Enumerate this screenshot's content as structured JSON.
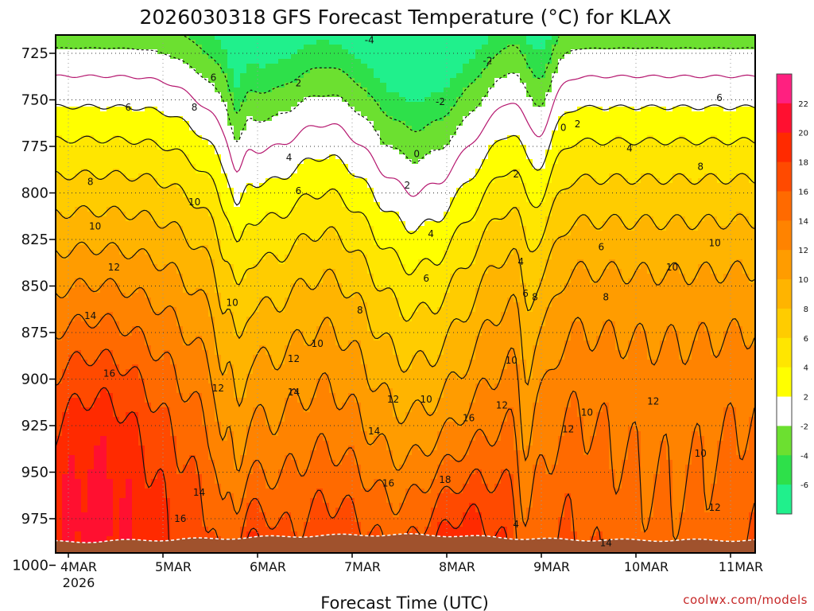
{
  "chart_data": {
    "type": "heatmap",
    "title": "2026030318 GFS Forecast Temperature (°C) for KLAX",
    "xlabel": "Forecast Time (UTC)",
    "ylabel": "",
    "credit": "coolwx.com/models",
    "x_tick_labels": [
      "4MAR",
      "5MAR",
      "6MAR",
      "7MAR",
      "8MAR",
      "9MAR",
      "10MAR",
      "11MAR"
    ],
    "x_tick_sublabel": "2026",
    "x_range_days": [
      0,
      7.2
    ],
    "y_tick_labels": [
      "725",
      "750",
      "775",
      "800",
      "825",
      "850",
      "875",
      "900",
      "925",
      "950",
      "975",
      "1000"
    ],
    "y_range_hpa": [
      713,
      1015
    ],
    "colorbar": {
      "labels": [
        "22",
        "20",
        "18",
        "16",
        "14",
        "12",
        "10",
        "8",
        "6",
        "4",
        "2",
        "-2",
        "-4",
        "-6"
      ],
      "bins": [
        {
          "lo": -8,
          "hi": -6,
          "color": "#20f08c"
        },
        {
          "lo": -6,
          "hi": -4,
          "color": "#2ee04a"
        },
        {
          "lo": -4,
          "hi": -2,
          "color": "#6ce030"
        },
        {
          "lo": -2,
          "hi": 2,
          "color": "#ffffff"
        },
        {
          "lo": 2,
          "hi": 4,
          "color": "#ffff00"
        },
        {
          "lo": 4,
          "hi": 6,
          "color": "#ffe600"
        },
        {
          "lo": 6,
          "hi": 8,
          "color": "#ffcc00"
        },
        {
          "lo": 8,
          "hi": 10,
          "color": "#ffb400"
        },
        {
          "lo": 10,
          "hi": 12,
          "color": "#ff9c00"
        },
        {
          "lo": 12,
          "hi": 14,
          "color": "#ff8300"
        },
        {
          "lo": 14,
          "hi": 16,
          "color": "#ff6a00"
        },
        {
          "lo": 16,
          "hi": 18,
          "color": "#ff4a00"
        },
        {
          "lo": 18,
          "hi": 20,
          "color": "#ff2a00"
        },
        {
          "lo": 20,
          "hi": 22,
          "color": "#ff1030"
        },
        {
          "lo": 22,
          "hi": 24,
          "color": "#ff2080"
        }
      ]
    },
    "contour_labels": [
      {
        "text": "-4",
        "day": 3.25,
        "p": 718
      },
      {
        "text": "-2",
        "day": 4.5,
        "p": 729
      },
      {
        "text": "-2",
        "day": 4.0,
        "p": 751
      },
      {
        "text": "2",
        "day": 2.5,
        "p": 741
      },
      {
        "text": "0",
        "day": 5.3,
        "p": 765
      },
      {
        "text": "2",
        "day": 5.45,
        "p": 763
      },
      {
        "text": "0",
        "day": 3.75,
        "p": 779
      },
      {
        "text": "2",
        "day": 3.65,
        "p": 796
      },
      {
        "text": "2",
        "day": 4.8,
        "p": 790
      },
      {
        "text": "4",
        "day": 6.0,
        "p": 776
      },
      {
        "text": "6",
        "day": 1.6,
        "p": 738
      },
      {
        "text": "6",
        "day": 0.7,
        "p": 754
      },
      {
        "text": "6",
        "day": 6.95,
        "p": 749
      },
      {
        "text": "8",
        "day": 1.4,
        "p": 754
      },
      {
        "text": "8",
        "day": 0.3,
        "p": 794
      },
      {
        "text": "8",
        "day": 6.75,
        "p": 786
      },
      {
        "text": "4",
        "day": 2.4,
        "p": 781
      },
      {
        "text": "6",
        "day": 2.5,
        "p": 799
      },
      {
        "text": "4",
        "day": 3.9,
        "p": 822
      },
      {
        "text": "4",
        "day": 4.85,
        "p": 837
      },
      {
        "text": "6",
        "day": 3.85,
        "p": 846
      },
      {
        "text": "6",
        "day": 5.7,
        "p": 829
      },
      {
        "text": "6",
        "day": 4.9,
        "p": 854
      },
      {
        "text": "8",
        "day": 5.0,
        "p": 856
      },
      {
        "text": "8",
        "day": 5.75,
        "p": 856
      },
      {
        "text": "8",
        "day": 3.15,
        "p": 863
      },
      {
        "text": "10",
        "day": 1.4,
        "p": 805
      },
      {
        "text": "10",
        "day": 0.35,
        "p": 818
      },
      {
        "text": "10",
        "day": 1.8,
        "p": 859
      },
      {
        "text": "10",
        "day": 2.7,
        "p": 881
      },
      {
        "text": "10",
        "day": 6.45,
        "p": 840
      },
      {
        "text": "10",
        "day": 6.9,
        "p": 827
      },
      {
        "text": "10",
        "day": 4.75,
        "p": 890
      },
      {
        "text": "10",
        "day": 3.85,
        "p": 911
      },
      {
        "text": "10",
        "day": 5.55,
        "p": 918
      },
      {
        "text": "10",
        "day": 6.75,
        "p": 940
      },
      {
        "text": "12",
        "day": 0.55,
        "p": 840
      },
      {
        "text": "12",
        "day": 2.45,
        "p": 889
      },
      {
        "text": "12",
        "day": 1.65,
        "p": 905
      },
      {
        "text": "12",
        "day": 3.5,
        "p": 911
      },
      {
        "text": "12",
        "day": 4.65,
        "p": 914
      },
      {
        "text": "12",
        "day": 5.35,
        "p": 927
      },
      {
        "text": "12",
        "day": 6.25,
        "p": 912
      },
      {
        "text": "12",
        "day": 6.9,
        "p": 969
      },
      {
        "text": "14",
        "day": 0.3,
        "p": 866
      },
      {
        "text": "14",
        "day": 2.45,
        "p": 907
      },
      {
        "text": "14",
        "day": 3.3,
        "p": 928
      },
      {
        "text": "14",
        "day": 1.45,
        "p": 961
      },
      {
        "text": "14",
        "day": 5.75,
        "p": 988
      },
      {
        "text": "14",
        "day": 6.35,
        "p": 1003
      },
      {
        "text": "16",
        "day": 0.5,
        "p": 897
      },
      {
        "text": "16",
        "day": 4.3,
        "p": 921
      },
      {
        "text": "16",
        "day": 3.45,
        "p": 956
      },
      {
        "text": "16",
        "day": 1.25,
        "p": 975
      },
      {
        "text": "18",
        "day": 4.05,
        "p": 954
      },
      {
        "text": "4",
        "day": 4.8,
        "p": 978
      }
    ]
  }
}
